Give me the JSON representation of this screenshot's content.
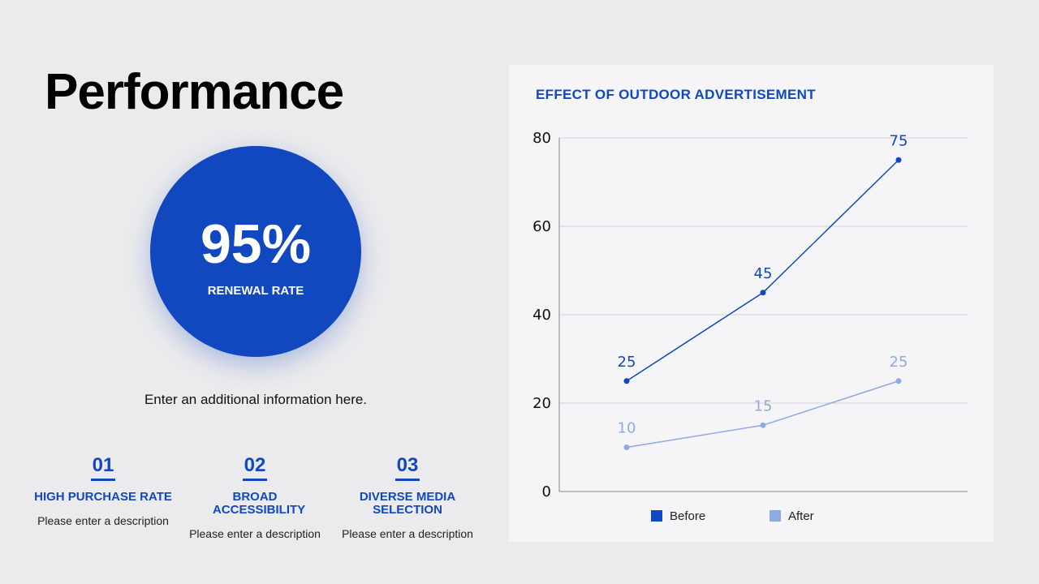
{
  "slide": {
    "title": "Performance",
    "stat": {
      "value": "95%",
      "label": "RENEWAL RATE"
    },
    "info": "Enter an additional information here."
  },
  "features": [
    {
      "number": "01",
      "title": "HIGH PURCHASE RATE",
      "description": "Please enter a description"
    },
    {
      "number": "02",
      "title": "BROAD ACCESSIBILITY",
      "description": "Please enter a description"
    },
    {
      "number": "03",
      "title": "DIVERSE MEDIA SELECTION",
      "description": "Please enter a description"
    }
  ],
  "colors": {
    "accent": "#1148c0",
    "after": "#8faae0"
  },
  "chart_data": {
    "type": "line",
    "title": "EFFECT OF OUTDOOR ADVERTISEMENT",
    "x": [
      1,
      2,
      3
    ],
    "series": [
      {
        "name": "Before",
        "values": [
          25,
          45,
          75
        ],
        "color": "#1148c0"
      },
      {
        "name": "After",
        "values": [
          10,
          15,
          25
        ],
        "color": "#8faae0"
      }
    ],
    "ylim": [
      0,
      80
    ],
    "yticks": [
      "0",
      "20",
      "40",
      "60",
      "80"
    ],
    "grid": true,
    "legend": "bottom"
  }
}
